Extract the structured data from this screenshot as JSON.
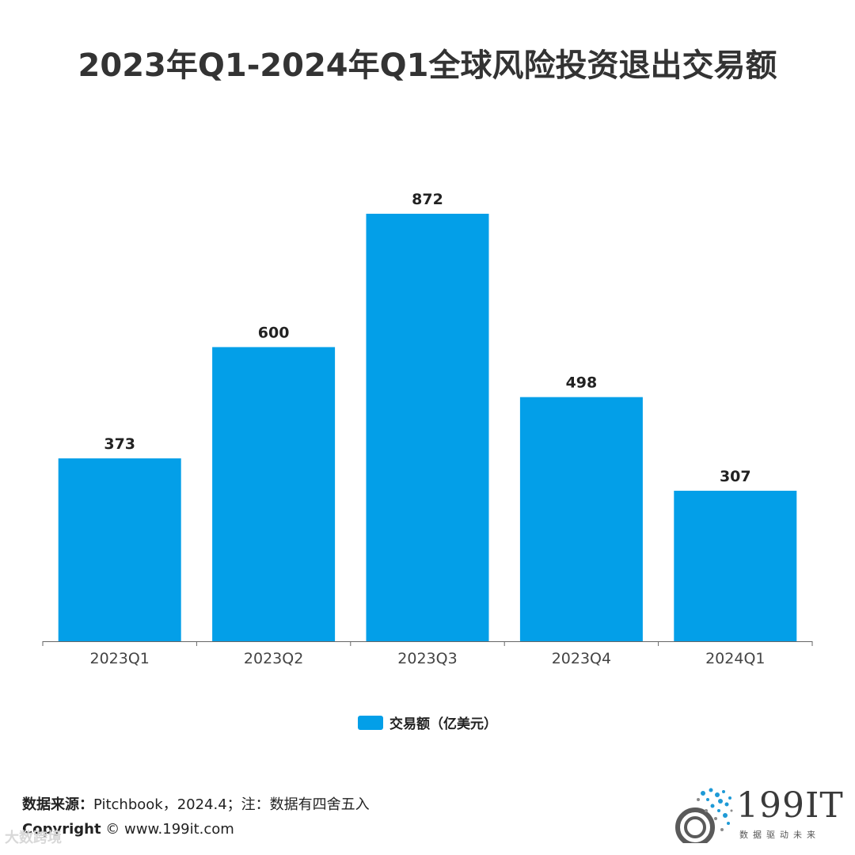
{
  "title": "2023年Q1-2024年Q1全球风险投资退出交易额",
  "chart_data": {
    "type": "bar",
    "title": "2023年Q1-2024年Q1全球风险投资退出交易额",
    "categories": [
      "2023Q1",
      "2023Q2",
      "2023Q3",
      "2023Q4",
      "2024Q1"
    ],
    "series": [
      {
        "name": "交易额（亿美元）",
        "values": [
          373,
          600,
          872,
          498,
          307
        ],
        "color": "#039fe8"
      }
    ],
    "ylim": [
      0,
      872
    ],
    "grid": false,
    "legend": "bottom",
    "data_labels": true
  },
  "footer": {
    "source_label": "数据来源：",
    "source_text": "Pitchbook，2024.4；注：数据有四舍五入",
    "copyright_label": "Copyright",
    "copyright_text": "©  www.199it.com"
  },
  "logo": {
    "text": "199IT",
    "subtitle": "数据驱动未来"
  },
  "watermark": "大数跨境"
}
